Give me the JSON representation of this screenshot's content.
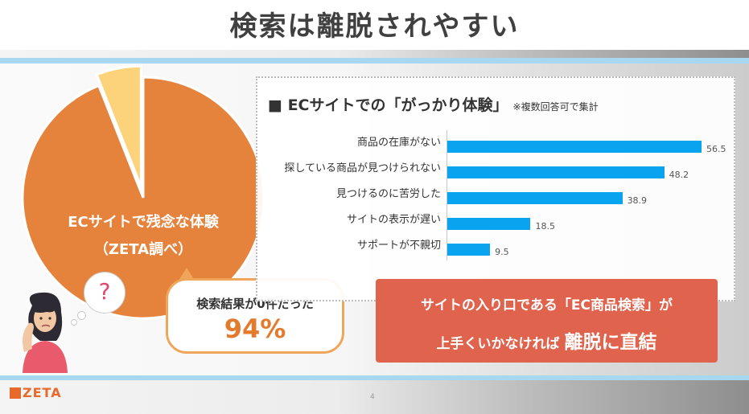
{
  "title": "検索は離脱されやすい",
  "pie": {
    "label_line1": "ECサイトで残念な体験",
    "label_line2": "（ZETA調べ）",
    "main_share": 94,
    "other_share": 6,
    "colors": {
      "main": "#e5833c",
      "other": "#fcd27a"
    }
  },
  "question_bubble": {
    "mark": "?"
  },
  "callout": {
    "line1": "検索結果が0件だった",
    "value": "94%"
  },
  "chart_data": {
    "type": "bar",
    "orientation": "horizontal",
    "title": "ECサイトでの「がっかり体験」",
    "note": "※複数回答可で集計",
    "categories": [
      "商品の在庫がない",
      "探している商品が見つけられない",
      "見つけるのに苦労した",
      "サイトの表示が遅い",
      "サポートが不親切"
    ],
    "values": [
      56.5,
      48.2,
      38.9,
      18.5,
      9.5
    ],
    "xlim": [
      0,
      60
    ],
    "bar_color": "#0aa3ef"
  },
  "chart_title_prefix": "■",
  "message": {
    "line1": "サイトの入り口である「EC商品検索」が",
    "line2_pre": "上手くいかなければ",
    "line2_em": "離脱に直結"
  },
  "logo": "ZETA",
  "page_number": "4"
}
